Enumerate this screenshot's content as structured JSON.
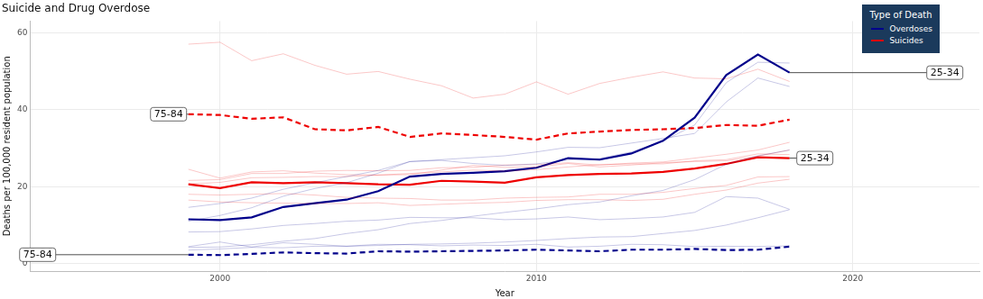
{
  "chart_data": {
    "type": "line",
    "title": "Suicide and Drug Overdose",
    "x_label": "Year",
    "y_label": "Deaths per 100,000 resident population",
    "legend_title": "Type of Death",
    "legend": "top right",
    "grid": true,
    "x": [
      1999,
      2000,
      2001,
      2002,
      2003,
      2004,
      2005,
      2006,
      2007,
      2008,
      2009,
      2010,
      2011,
      2012,
      2013,
      2014,
      2015,
      2016,
      2017,
      2018
    ],
    "xlim": [
      1994,
      2024
    ],
    "xticks": [
      2000,
      2010,
      2020
    ],
    "ylim": [
      -2,
      63
    ],
    "yticks": [
      0,
      20,
      40,
      60
    ],
    "series": [
      {
        "name": "Overdoses",
        "color": "#00008B",
        "values": [
          14.6,
          15.6,
          17.0,
          19.3,
          21.0,
          22.6,
          24.2,
          26.5,
          26.8,
          26.0,
          25.5,
          25.9,
          26.9,
          27.3,
          29.0,
          31.8,
          36.0,
          47.0,
          52.3,
          52.1
        ]
      },
      {
        "name": "Overdoses",
        "color": "#00008B",
        "values": [
          11.0,
          12.5,
          14.5,
          17.5,
          19.5,
          21.0,
          23.5,
          26.5,
          27.0,
          27.5,
          28.0,
          29.0,
          30.2,
          30.1,
          31.3,
          32.5,
          33.8,
          42.0,
          48.2,
          46.0
        ]
      },
      {
        "name": "Overdoses",
        "color": "#00008B",
        "values": [
          4.2,
          4.3,
          4.9,
          5.8,
          6.5,
          7.8,
          8.8,
          10.4,
          11.2,
          12.3,
          13.3,
          14.2,
          15.3,
          16.0,
          17.6,
          19.0,
          21.8,
          25.8,
          28.0,
          29.5
        ]
      },
      {
        "name": "Overdoses",
        "color": "#00008B",
        "values": [
          8.2,
          8.3,
          9.0,
          9.9,
          10.4,
          11.0,
          11.3,
          12.0,
          11.9,
          11.9,
          11.4,
          11.6,
          12.1,
          11.4,
          11.7,
          12.1,
          13.3,
          17.4,
          17.0,
          14.1
        ]
      },
      {
        "name": "Overdoses",
        "color": "#00008B",
        "values": [
          3.5,
          3.8,
          4.2,
          4.1,
          4.5,
          4.5,
          4.7,
          5.0,
          5.1,
          5.3,
          5.6,
          6.0,
          6.5,
          6.9,
          7.0,
          7.8,
          8.6,
          10.0,
          11.9,
          14.0
        ]
      },
      {
        "name": "Overdoses",
        "color": "#00008B",
        "values": [
          4.4,
          5.6,
          4.3,
          5.4,
          5.0,
          4.5,
          5.0,
          4.9,
          4.6,
          4.8,
          4.7,
          5.0,
          4.3,
          4.5,
          5.0,
          4.9,
          4.4,
          4.5,
          4.4,
          4.6
        ]
      },
      {
        "name": "Suicides",
        "color": "#EE0000",
        "values": [
          57.0,
          57.5,
          52.7,
          54.5,
          51.5,
          49.2,
          49.9,
          47.9,
          46.2,
          43.0,
          44.0,
          47.2,
          44.0,
          46.8,
          48.4,
          49.8,
          48.2,
          48.0,
          50.5,
          47.3
        ]
      },
      {
        "name": "Suicides",
        "color": "#EE0000",
        "values": [
          21.6,
          21.8,
          23.4,
          23.4,
          24.0,
          24.2,
          24.1,
          24.2,
          24.9,
          25.0,
          25.6,
          25.7,
          26.2,
          25.6,
          26.1,
          26.4,
          27.4,
          28.4,
          29.5,
          31.5
        ]
      },
      {
        "name": "Suicides",
        "color": "#EE0000",
        "values": [
          20.7,
          21.1,
          22.3,
          22.4,
          22.6,
          22.6,
          23.0,
          23.1,
          24.3,
          25.5,
          25.0,
          25.1,
          26.0,
          25.1,
          25.6,
          26.2,
          26.5,
          26.7,
          27.9,
          29.5
        ]
      },
      {
        "name": "Suicides",
        "color": "#EE0000",
        "values": [
          24.5,
          22.2,
          23.8,
          24.1,
          23.5,
          23.1,
          23.0,
          23.4,
          23.8,
          24.3,
          24.0,
          24.4,
          25.1,
          25.7,
          25.9,
          25.9,
          26.7,
          27.0,
          28.5,
          28.3
        ]
      },
      {
        "name": "Suicides",
        "color": "#EE0000",
        "values": [
          18.0,
          17.8,
          18.0,
          18.2,
          17.8,
          17.2,
          17.0,
          16.9,
          16.5,
          16.5,
          17.0,
          17.2,
          17.3,
          18.0,
          18.0,
          18.5,
          19.5,
          20.3,
          22.5,
          22.6
        ]
      },
      {
        "name": "Suicides",
        "color": "#EE0000",
        "values": [
          16.5,
          16.0,
          15.8,
          15.7,
          15.6,
          15.6,
          15.8,
          15.1,
          15.4,
          15.7,
          15.9,
          16.4,
          16.6,
          16.6,
          16.4,
          16.7,
          18.0,
          19.1,
          20.9,
          21.9
        ]
      },
      {
        "name": "Overdoses",
        "color": "#00008B",
        "line_style": "solid",
        "label": "25-34",
        "values": [
          11.5,
          11.3,
          12.0,
          14.7,
          15.7,
          16.6,
          18.8,
          22.6,
          23.3,
          23.6,
          24.0,
          24.9,
          27.4,
          27.0,
          28.6,
          31.9,
          37.9,
          49.0,
          54.3,
          49.6
        ]
      },
      {
        "name": "Suicides",
        "color": "#EE0000",
        "line_style": "solid",
        "label": "25-34",
        "values": [
          20.6,
          19.6,
          21.1,
          20.9,
          21.1,
          20.9,
          20.6,
          20.5,
          21.5,
          21.3,
          21.0,
          22.4,
          23.0,
          23.3,
          23.4,
          23.8,
          24.7,
          25.9,
          27.6,
          27.4
        ]
      },
      {
        "name": "Suicides",
        "color": "#EE0000",
        "line_style": "dashed",
        "label": "75-84",
        "values": [
          38.8,
          38.6,
          37.6,
          38.0,
          34.9,
          34.6,
          35.5,
          32.9,
          33.8,
          33.4,
          32.9,
          32.2,
          33.8,
          34.3,
          34.7,
          34.9,
          35.2,
          36.0,
          35.8,
          37.4
        ]
      },
      {
        "name": "Overdoses",
        "color": "#00008B",
        "line_style": "dashed",
        "label": "75-84",
        "values": [
          2.3,
          2.2,
          2.5,
          2.9,
          2.7,
          2.6,
          3.2,
          3.1,
          3.2,
          3.3,
          3.4,
          3.6,
          3.4,
          3.2,
          3.6,
          3.6,
          3.8,
          3.5,
          3.6,
          4.4
        ]
      }
    ]
  }
}
